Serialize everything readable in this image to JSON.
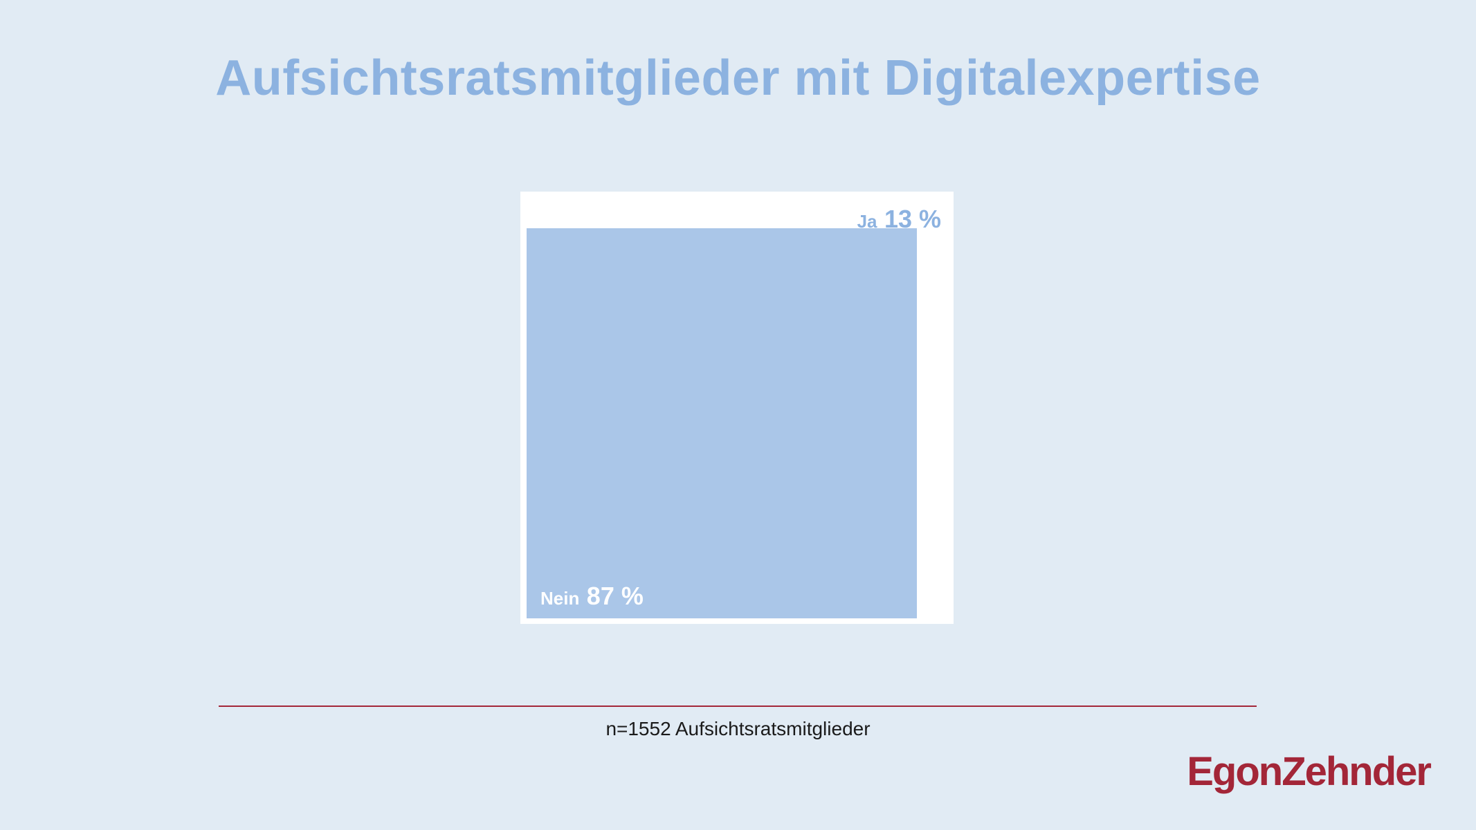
{
  "title": "Aufsichtsratsmitglieder mit Digitalexpertise",
  "footnote": "n=1552 Aufsichtsratsmitglieder",
  "logo": "EgonZehnder",
  "colors": {
    "background": "#e1ebf4",
    "title": "#8cb2e0",
    "nein_fill": "#aac6e8",
    "ja_fill": "#ffffff",
    "ja_label": "#8cb2e0",
    "nein_label": "#ffffff",
    "brand": "#a32638"
  },
  "chart_data": {
    "type": "area",
    "categories": [
      "Nein",
      "Ja"
    ],
    "values": [
      87,
      13
    ],
    "unit": "%",
    "labels": [
      {
        "category": "Nein",
        "value_text": "87 %"
      },
      {
        "category": "Ja",
        "value_text": "13 %"
      }
    ]
  }
}
